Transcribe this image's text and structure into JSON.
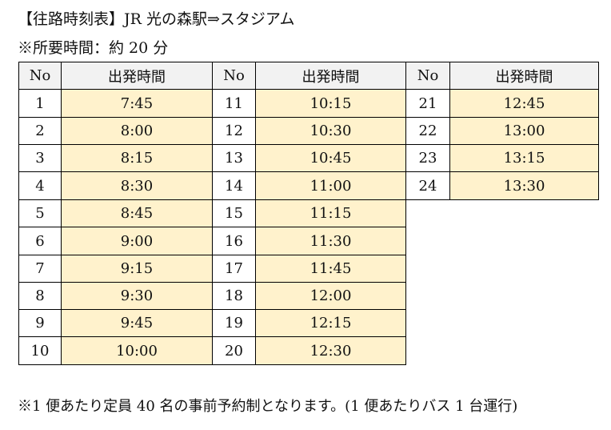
{
  "title": "【往路時刻表】JR 光の森駅⇒スタジアム",
  "subtitle": "※所要時間：約 20 分",
  "table": {
    "headers": {
      "no": "No",
      "time": "出発時間"
    },
    "colors": {
      "header_bg": "#f2f2f2",
      "time_bg": "#fff2cc"
    },
    "groups": [
      {
        "rows": [
          [
            "1",
            "7:45"
          ],
          [
            "2",
            "8:00"
          ],
          [
            "3",
            "8:15"
          ],
          [
            "4",
            "8:30"
          ],
          [
            "5",
            "8:45"
          ],
          [
            "6",
            "9:00"
          ],
          [
            "7",
            "9:15"
          ],
          [
            "8",
            "9:30"
          ],
          [
            "9",
            "9:45"
          ],
          [
            "10",
            "10:00"
          ]
        ]
      },
      {
        "rows": [
          [
            "11",
            "10:15"
          ],
          [
            "12",
            "10:30"
          ],
          [
            "13",
            "10:45"
          ],
          [
            "14",
            "11:00"
          ],
          [
            "15",
            "11:15"
          ],
          [
            "16",
            "11:30"
          ],
          [
            "17",
            "11:45"
          ],
          [
            "18",
            "12:00"
          ],
          [
            "19",
            "12:15"
          ],
          [
            "20",
            "12:30"
          ]
        ]
      },
      {
        "rows": [
          [
            "21",
            "12:45"
          ],
          [
            "22",
            "13:00"
          ],
          [
            "23",
            "13:15"
          ],
          [
            "24",
            "13:30"
          ]
        ]
      }
    ]
  },
  "note": "※1 便あたり定員 40 名の事前予約制となります。(1 便あたりバス 1 台運行)"
}
